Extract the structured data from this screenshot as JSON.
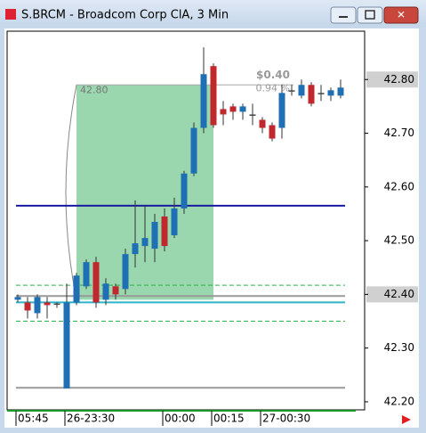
{
  "window": {
    "title": "S.BRCM - Broadcom Corp ClA, 3 Min"
  },
  "chart_data": {
    "type": "candlestick",
    "categories": [
      "05:45",
      null,
      null,
      null,
      null,
      "26-23:30",
      null,
      null,
      null,
      null,
      null,
      null,
      null,
      null,
      null,
      "00:00",
      null,
      null,
      null,
      null,
      "00:15",
      null,
      null,
      null,
      null,
      "27-00:30",
      null,
      null,
      null,
      null,
      null,
      null,
      null,
      null
    ],
    "open": [
      42.39,
      42.385,
      42.365,
      42.385,
      42.383,
      42.225,
      42.385,
      42.415,
      42.46,
      42.39,
      42.415,
      42.41,
      42.475,
      42.49,
      42.485,
      42.545,
      42.51,
      42.56,
      42.625,
      42.71,
      42.825,
      42.745,
      42.75,
      42.74,
      42.735,
      42.725,
      42.715,
      42.71,
      42.78,
      42.77,
      42.79,
      42.775,
      42.77,
      42.77
    ],
    "high": [
      42.4,
      42.395,
      42.4,
      42.395,
      42.385,
      42.42,
      42.44,
      42.465,
      42.47,
      42.43,
      42.42,
      42.485,
      42.575,
      42.565,
      42.55,
      42.56,
      42.58,
      42.63,
      42.72,
      42.86,
      42.83,
      42.76,
      42.755,
      42.755,
      42.755,
      42.73,
      42.72,
      42.79,
      42.79,
      42.8,
      42.795,
      42.79,
      42.785,
      42.8
    ],
    "low": [
      42.385,
      42.355,
      42.355,
      42.355,
      42.375,
      42.225,
      42.38,
      42.41,
      42.375,
      42.38,
      42.39,
      42.4,
      42.45,
      42.46,
      42.46,
      42.48,
      42.505,
      42.55,
      42.62,
      42.7,
      42.71,
      42.715,
      42.725,
      42.725,
      42.715,
      42.7,
      42.685,
      42.69,
      42.77,
      42.765,
      42.75,
      42.76,
      42.76,
      42.765
    ],
    "close": [
      42.395,
      42.37,
      42.395,
      42.38,
      42.383,
      42.385,
      42.435,
      42.46,
      42.385,
      42.42,
      42.4,
      42.475,
      42.495,
      42.505,
      42.535,
      42.49,
      42.56,
      42.625,
      42.71,
      42.81,
      42.715,
      42.735,
      42.74,
      42.75,
      42.735,
      42.71,
      42.69,
      42.775,
      42.78,
      42.79,
      42.755,
      42.775,
      42.78,
      42.785
    ],
    "up_color": "#1f6fb4",
    "down_color": "#c0282d",
    "ylim": [
      42.185,
      42.89
    ],
    "yticks": [
      {
        "value": 42.2,
        "label": "42.20"
      },
      {
        "value": 42.3,
        "label": "42.30"
      },
      {
        "value": 42.4,
        "label": "42.40"
      },
      {
        "value": 42.5,
        "label": "42.50"
      },
      {
        "value": 42.6,
        "label": "42.60"
      },
      {
        "value": 42.7,
        "label": "42.70"
      },
      {
        "value": 42.8,
        "label": "42.80"
      }
    ],
    "highlighted_yticks": [
      42.4,
      42.8
    ],
    "hlines": [
      {
        "value": 42.565,
        "color": "#1a1aa0",
        "dash": false
      },
      {
        "value": 42.385,
        "color": "#2fb3c8",
        "dash": false
      },
      {
        "value": 42.417,
        "color": "#2db34a",
        "dash": true
      },
      {
        "value": 42.35,
        "color": "#2db34a",
        "dash": true
      },
      {
        "value": 42.397,
        "color": "#999999",
        "dash": false
      },
      {
        "value": 42.226,
        "color": "#999999",
        "dash": false
      }
    ],
    "zone": {
      "from": 42.39,
      "to": 42.79,
      "color": "#8fd3a5",
      "label": "42.80",
      "change_label": "$0.40",
      "pct_label": "0.94 %"
    }
  }
}
